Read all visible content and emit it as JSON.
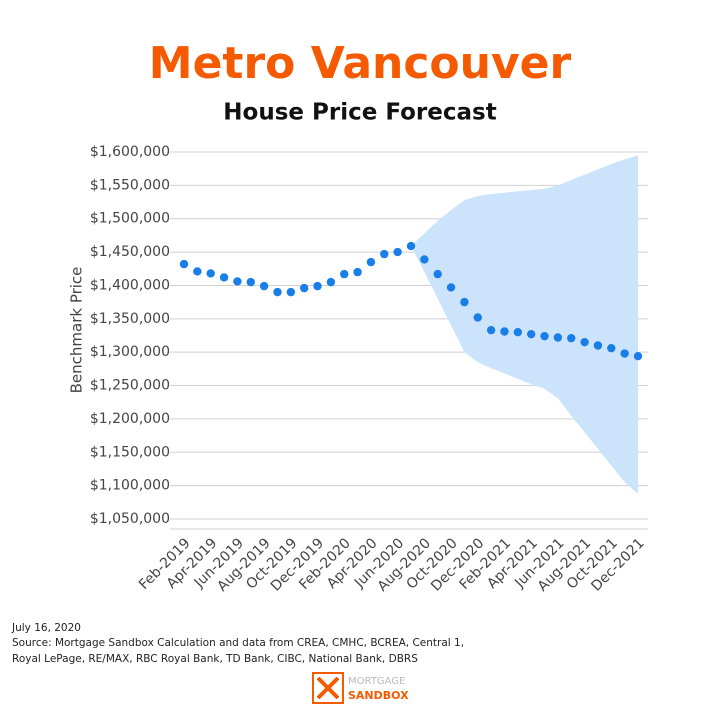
{
  "chart_data": {
    "type": "line",
    "title": "Metro Vancouver",
    "subtitle": "House Price Forecast",
    "y_label": "Benchmark Price",
    "categories": [
      "Feb-2019",
      null,
      "Apr-2019",
      null,
      "Jun-2019",
      null,
      "Aug-2019",
      null,
      "Oct-2019",
      null,
      "Dec-2019",
      null,
      "Feb-2020",
      null,
      "Apr-2020",
      null,
      "Jun-2020",
      null,
      "Aug-2020",
      null,
      "Oct-2020",
      null,
      "Dec-2020",
      null,
      "Feb-2021",
      null,
      "Apr-2021",
      null,
      "Jun-2021",
      null,
      "Aug-2021",
      null,
      "Oct-2021",
      null,
      "Dec-2021"
    ],
    "series": [
      {
        "color": "#1a7ee8",
        "values": [
          1432000,
          1421000,
          1418000,
          1412000,
          1406000,
          1405000,
          1399000,
          1390000,
          1390000,
          1396000,
          1399000,
          1405000,
          1417000,
          1420000,
          1435000,
          1447000,
          1450000,
          1459000,
          1439000,
          1417000,
          1397000,
          1375000,
          1352000,
          1333000,
          1331000,
          1330000,
          1327000,
          1324000,
          1322000,
          1321000,
          1315000,
          1310000,
          1306000,
          1298000,
          1294000
        ]
      }
    ],
    "band": {
      "color": "#cce4fb",
      "upper": [
        null,
        null,
        null,
        null,
        null,
        null,
        null,
        null,
        null,
        null,
        null,
        null,
        null,
        null,
        null,
        null,
        null,
        1459000,
        1478000,
        1497000,
        1513000,
        1528000,
        1534000,
        1537000,
        1539000,
        1541000,
        1543000,
        1545000,
        1550000,
        1558000,
        1566000,
        1574000,
        1582000,
        1589000,
        1595000
      ],
      "lower": [
        null,
        null,
        null,
        null,
        null,
        null,
        null,
        null,
        null,
        null,
        null,
        null,
        null,
        null,
        null,
        null,
        null,
        1459000,
        1420000,
        1380000,
        1340000,
        1300000,
        1285000,
        1276000,
        1268000,
        1260000,
        1252000,
        1245000,
        1231000,
        1205000,
        1180000,
        1155000,
        1130000,
        1105000,
        1088000
      ]
    },
    "ylim": [
      1050000,
      1600000
    ],
    "yticks": [
      {
        "value": 1050000,
        "label": "$1,050,000"
      },
      {
        "value": 1100000,
        "label": "$1,100,000"
      },
      {
        "value": 1150000,
        "label": "$1,150,000"
      },
      {
        "value": 1200000,
        "label": "$1,200,000"
      },
      {
        "value": 1250000,
        "label": "$1,250,000"
      },
      {
        "value": 1300000,
        "label": "$1,300,000"
      },
      {
        "value": 1350000,
        "label": "$1,350,000"
      },
      {
        "value": 1400000,
        "label": "$1,400,000"
      },
      {
        "value": 1450000,
        "label": "$1,450,000"
      },
      {
        "value": 1500000,
        "label": "$1,500,000"
      },
      {
        "value": 1550000,
        "label": "$1,550,000"
      },
      {
        "value": 1600000,
        "label": "$1,600,000"
      }
    ],
    "grid": true,
    "notes": [
      "July 16, 2020",
      "Source: Mortgage Sandbox Calculation and data from CREA, CMHC, BCREA, Central 1,",
      "Royal LePage, RE/MAX, RBC Royal Bank, TD Bank, CIBC, National Bank, DBRS"
    ],
    "logo": [
      "MORTGAGE",
      "SANDBOX"
    ]
  }
}
